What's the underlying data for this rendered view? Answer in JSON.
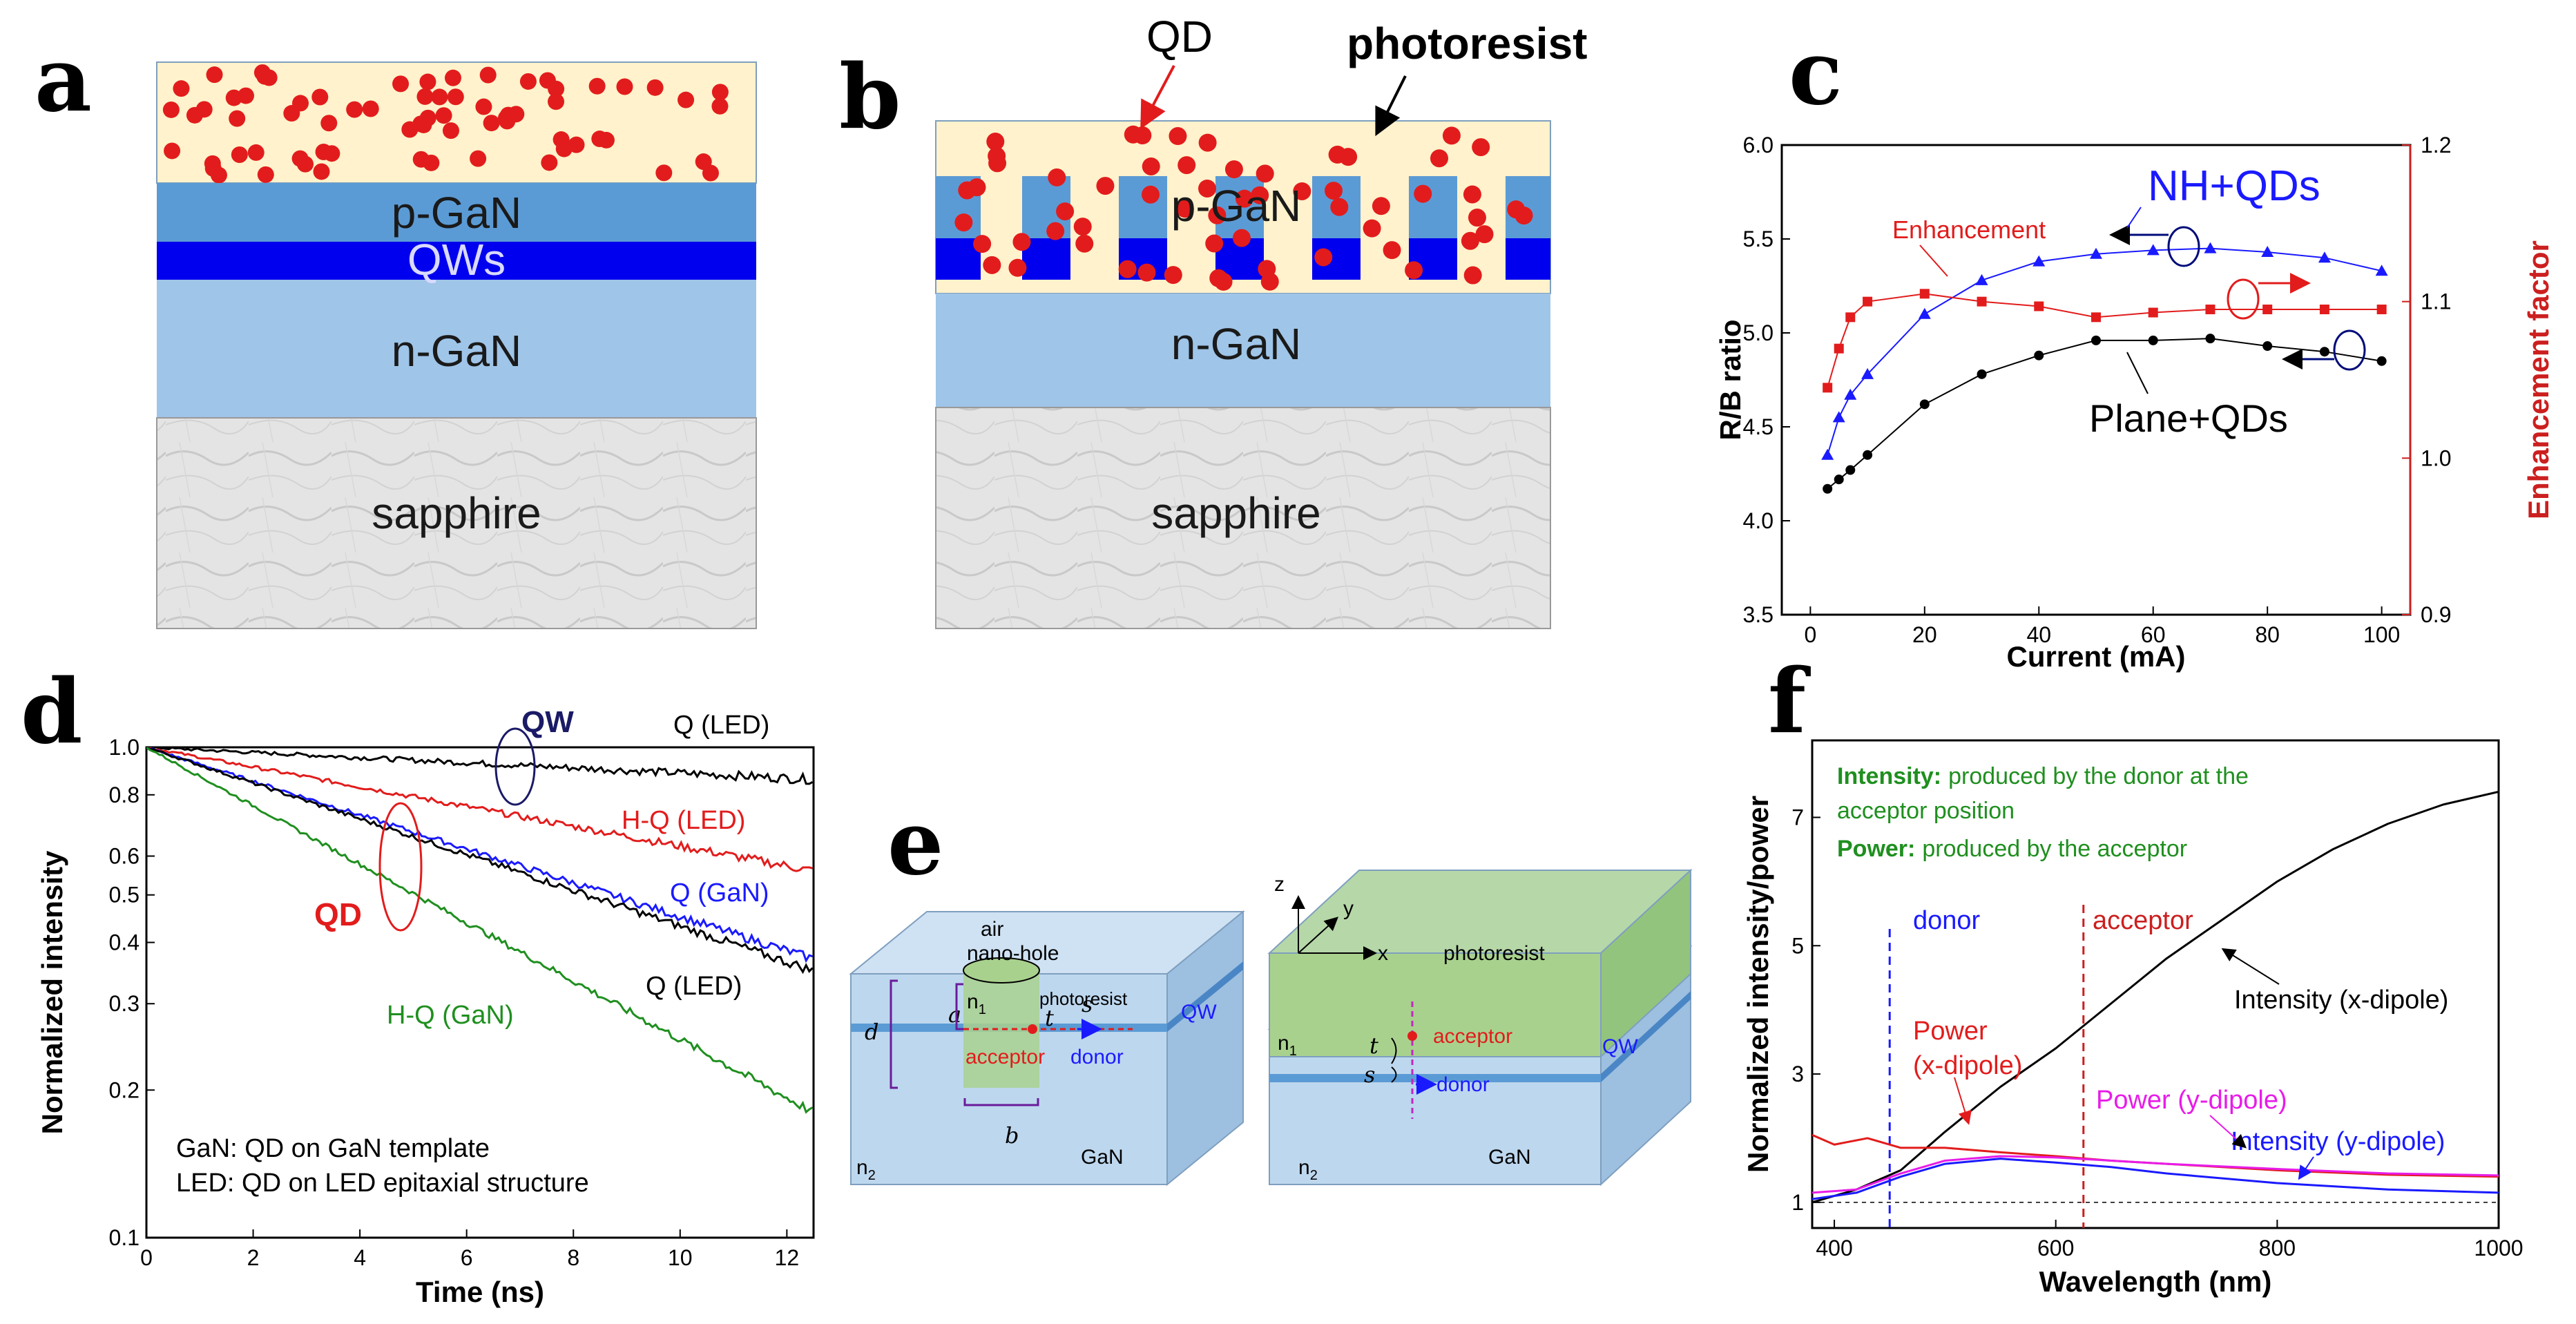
{
  "panel_labels": {
    "a": "a",
    "b": "b",
    "c": "c",
    "d": "d",
    "e": "e",
    "f": "f"
  },
  "panel_a": {
    "layers": {
      "pgan": "p-GaN",
      "qws": "QWs",
      "ngan": "n-GaN",
      "sapphire": "sapphire"
    }
  },
  "panel_b": {
    "layers": {
      "pgan": "p-GaN",
      "ngan": "n-GaN",
      "sapphire": "sapphire"
    },
    "callouts": {
      "qd": "QD",
      "photoresist": "photoresist"
    }
  },
  "colors": {
    "red": "#e21c1c",
    "blue": "#1a1aff",
    "green": "#1f8f1f",
    "black": "#000000",
    "magenta": "#e81ce8",
    "crimson": "#cc1f1f",
    "navy": "#1a1a66",
    "pgan": "#5b9bd5",
    "qw": "#0000ee",
    "ngan": "#9fc5e8"
  },
  "chart_data": [
    {
      "id": "c",
      "type": "line",
      "xlabel": "Current (mA)",
      "ylabel": "R/B ratio",
      "y2label": "Enhancement factor",
      "xlim": [
        -5,
        105
      ],
      "ylim": [
        3.5,
        6.0
      ],
      "y2lim": [
        0.9,
        1.2
      ],
      "xticks": [
        "0",
        "20",
        "40",
        "60",
        "80",
        "100"
      ],
      "yticks": [
        "3.5",
        "4.0",
        "4.5",
        "5.0",
        "5.5",
        "6.0"
      ],
      "y2ticks": [
        "0.9",
        "1.0",
        "1.1",
        "1.2"
      ],
      "annotations": {
        "nh": "NH+QDs",
        "plane": "Plane+QDs",
        "enh": "Enhancement"
      },
      "series": [
        {
          "name": "NH+QDs",
          "axis": "left",
          "color": "#1a1aff",
          "marker": "triangle",
          "x": [
            3,
            5,
            7,
            10,
            20,
            30,
            40,
            50,
            60,
            70,
            80,
            90,
            100
          ],
          "y": [
            4.35,
            4.55,
            4.67,
            4.78,
            5.1,
            5.28,
            5.38,
            5.42,
            5.44,
            5.45,
            5.43,
            5.4,
            5.33
          ]
        },
        {
          "name": "Plane+QDs",
          "axis": "left",
          "color": "#000000",
          "marker": "circle",
          "x": [
            3,
            5,
            7,
            10,
            20,
            30,
            40,
            50,
            60,
            70,
            80,
            90,
            100
          ],
          "y": [
            4.17,
            4.22,
            4.27,
            4.35,
            4.62,
            4.78,
            4.88,
            4.96,
            4.96,
            4.97,
            4.93,
            4.9,
            4.85
          ]
        },
        {
          "name": "Enhancement",
          "axis": "right",
          "color": "#e21c1c",
          "marker": "square",
          "x": [
            3,
            5,
            7,
            10,
            20,
            30,
            40,
            50,
            60,
            70,
            80,
            90,
            100
          ],
          "y": [
            1.045,
            1.07,
            1.09,
            1.1,
            1.105,
            1.1,
            1.097,
            1.09,
            1.093,
            1.095,
            1.095,
            1.095,
            1.095
          ]
        }
      ]
    },
    {
      "id": "d",
      "type": "line",
      "yscale": "log",
      "xlabel": "Time (ns)",
      "ylabel": "Normalized intensity",
      "xlim": [
        0,
        12.5
      ],
      "ylim": [
        0.1,
        1.0
      ],
      "xticks": [
        "0",
        "2",
        "4",
        "6",
        "8",
        "10",
        "12"
      ],
      "yticks": [
        {
          "v": 1.0,
          "t": "1.0"
        },
        {
          "v": 0.8,
          "t": "0.8"
        },
        {
          "v": 0.6,
          "t": "0.6"
        },
        {
          "v": 0.5,
          "t": "0.5"
        },
        {
          "v": 0.4,
          "t": "0.4"
        },
        {
          "v": 0.3,
          "t": "0.3"
        },
        {
          "v": 0.2,
          "t": "0.2"
        },
        {
          "v": 0.1,
          "t": "0.1"
        }
      ],
      "labels": {
        "qled_top": "Q (LED)",
        "hqled": "H-Q (LED)",
        "qgan": "Q (GaN)",
        "qled_bot": "Q (LED)",
        "hqgan": "H-Q (GaN)",
        "qw": "QW",
        "qd": "QD"
      },
      "legend": [
        "GaN: QD on GaN template",
        "LED: QD on LED epitaxial structure"
      ],
      "series": [
        {
          "name": "Q (LED) QW",
          "color": "#000000",
          "x": [
            0,
            12.5
          ],
          "y": [
            1.0,
            0.86
          ]
        },
        {
          "name": "H-Q (LED)",
          "color": "#e21c1c",
          "x": [
            0,
            12.5
          ],
          "y": [
            1.0,
            0.56
          ]
        },
        {
          "name": "Q (GaN)",
          "color": "#1a1aff",
          "x": [
            0,
            12.5
          ],
          "y": [
            1.0,
            0.37
          ]
        },
        {
          "name": "Q (LED)",
          "color": "#000000",
          "x": [
            0,
            12.5
          ],
          "y": [
            1.0,
            0.35
          ]
        },
        {
          "name": "H-Q (GaN)",
          "color": "#1f8f1f",
          "x": [
            0,
            12.5
          ],
          "y": [
            1.0,
            0.18
          ]
        }
      ]
    },
    {
      "id": "f",
      "type": "line",
      "xlabel": "Wavelength (nm)",
      "ylabel": "Normalized intensity/power",
      "xlim": [
        380,
        1000
      ],
      "ylim": [
        0.6,
        8.2
      ],
      "xticks": [
        "400",
        "600",
        "800",
        "1000"
      ],
      "yticks": [
        "1",
        "3",
        "5",
        "7"
      ],
      "texts": {
        "intensity_key": "Intensity:",
        "intensity_desc": "produced by the donor at the",
        "intensity_desc2": "acceptor position",
        "power_key": "Power:",
        "power_desc": "produced by the acceptor",
        "donor": "donor",
        "acceptor": "acceptor",
        "intensity_x": "Intensity (x-dipole)",
        "power_x1": "Power",
        "power_x2": "(x-dipole)",
        "power_y": "Power (y-dipole)",
        "intensity_y": "Intensity (y-dipole)"
      },
      "markers": {
        "donor_nm": 450,
        "acceptor_nm": 625,
        "baseline": 1.0
      },
      "series": [
        {
          "name": "Intensity (x-dipole)",
          "color": "#000000",
          "x": [
            380,
            420,
            460,
            500,
            550,
            600,
            650,
            700,
            750,
            800,
            850,
            900,
            950,
            1000
          ],
          "y": [
            1.0,
            1.2,
            1.5,
            2.1,
            2.8,
            3.4,
            4.1,
            4.8,
            5.4,
            6.0,
            6.5,
            6.9,
            7.2,
            7.4
          ]
        },
        {
          "name": "Power (x-dipole)",
          "color": "#e21c1c",
          "x": [
            380,
            400,
            430,
            460,
            500,
            550,
            600,
            650,
            700,
            800,
            900,
            1000
          ],
          "y": [
            2.05,
            1.9,
            2.0,
            1.85,
            1.85,
            1.78,
            1.72,
            1.65,
            1.6,
            1.5,
            1.43,
            1.4
          ]
        },
        {
          "name": "Power (y-dipole)",
          "color": "#e81ce8",
          "x": [
            380,
            420,
            460,
            500,
            550,
            600,
            650,
            700,
            800,
            900,
            1000
          ],
          "y": [
            1.15,
            1.2,
            1.45,
            1.65,
            1.72,
            1.7,
            1.65,
            1.6,
            1.52,
            1.45,
            1.42
          ]
        },
        {
          "name": "Intensity (y-dipole)",
          "color": "#1a1aff",
          "x": [
            380,
            420,
            460,
            500,
            550,
            600,
            650,
            700,
            800,
            900,
            1000
          ],
          "y": [
            1.05,
            1.15,
            1.4,
            1.6,
            1.68,
            1.62,
            1.55,
            1.45,
            1.3,
            1.2,
            1.15
          ]
        }
      ]
    }
  ],
  "panel_e": {
    "left": {
      "air": "air",
      "nanohole": "nano-hole",
      "photoresist": "photoresist",
      "n1": "n",
      "n1sub": "1",
      "n2": "n",
      "n2sub": "2",
      "gan": "GaN",
      "qw": "QW",
      "acceptor": "acceptor",
      "donor": "donor",
      "a": "a",
      "b": "b",
      "d": "d",
      "s": "s",
      "t": "t"
    },
    "right": {
      "z": "z",
      "y": "y",
      "x": "x",
      "photoresist": "photoresist",
      "n1": "n",
      "n1sub": "1",
      "n2": "n",
      "n2sub": "2",
      "gan": "GaN",
      "qw": "QW",
      "acceptor": "acceptor",
      "donor": "donor",
      "s": "s",
      "t": "t"
    }
  }
}
